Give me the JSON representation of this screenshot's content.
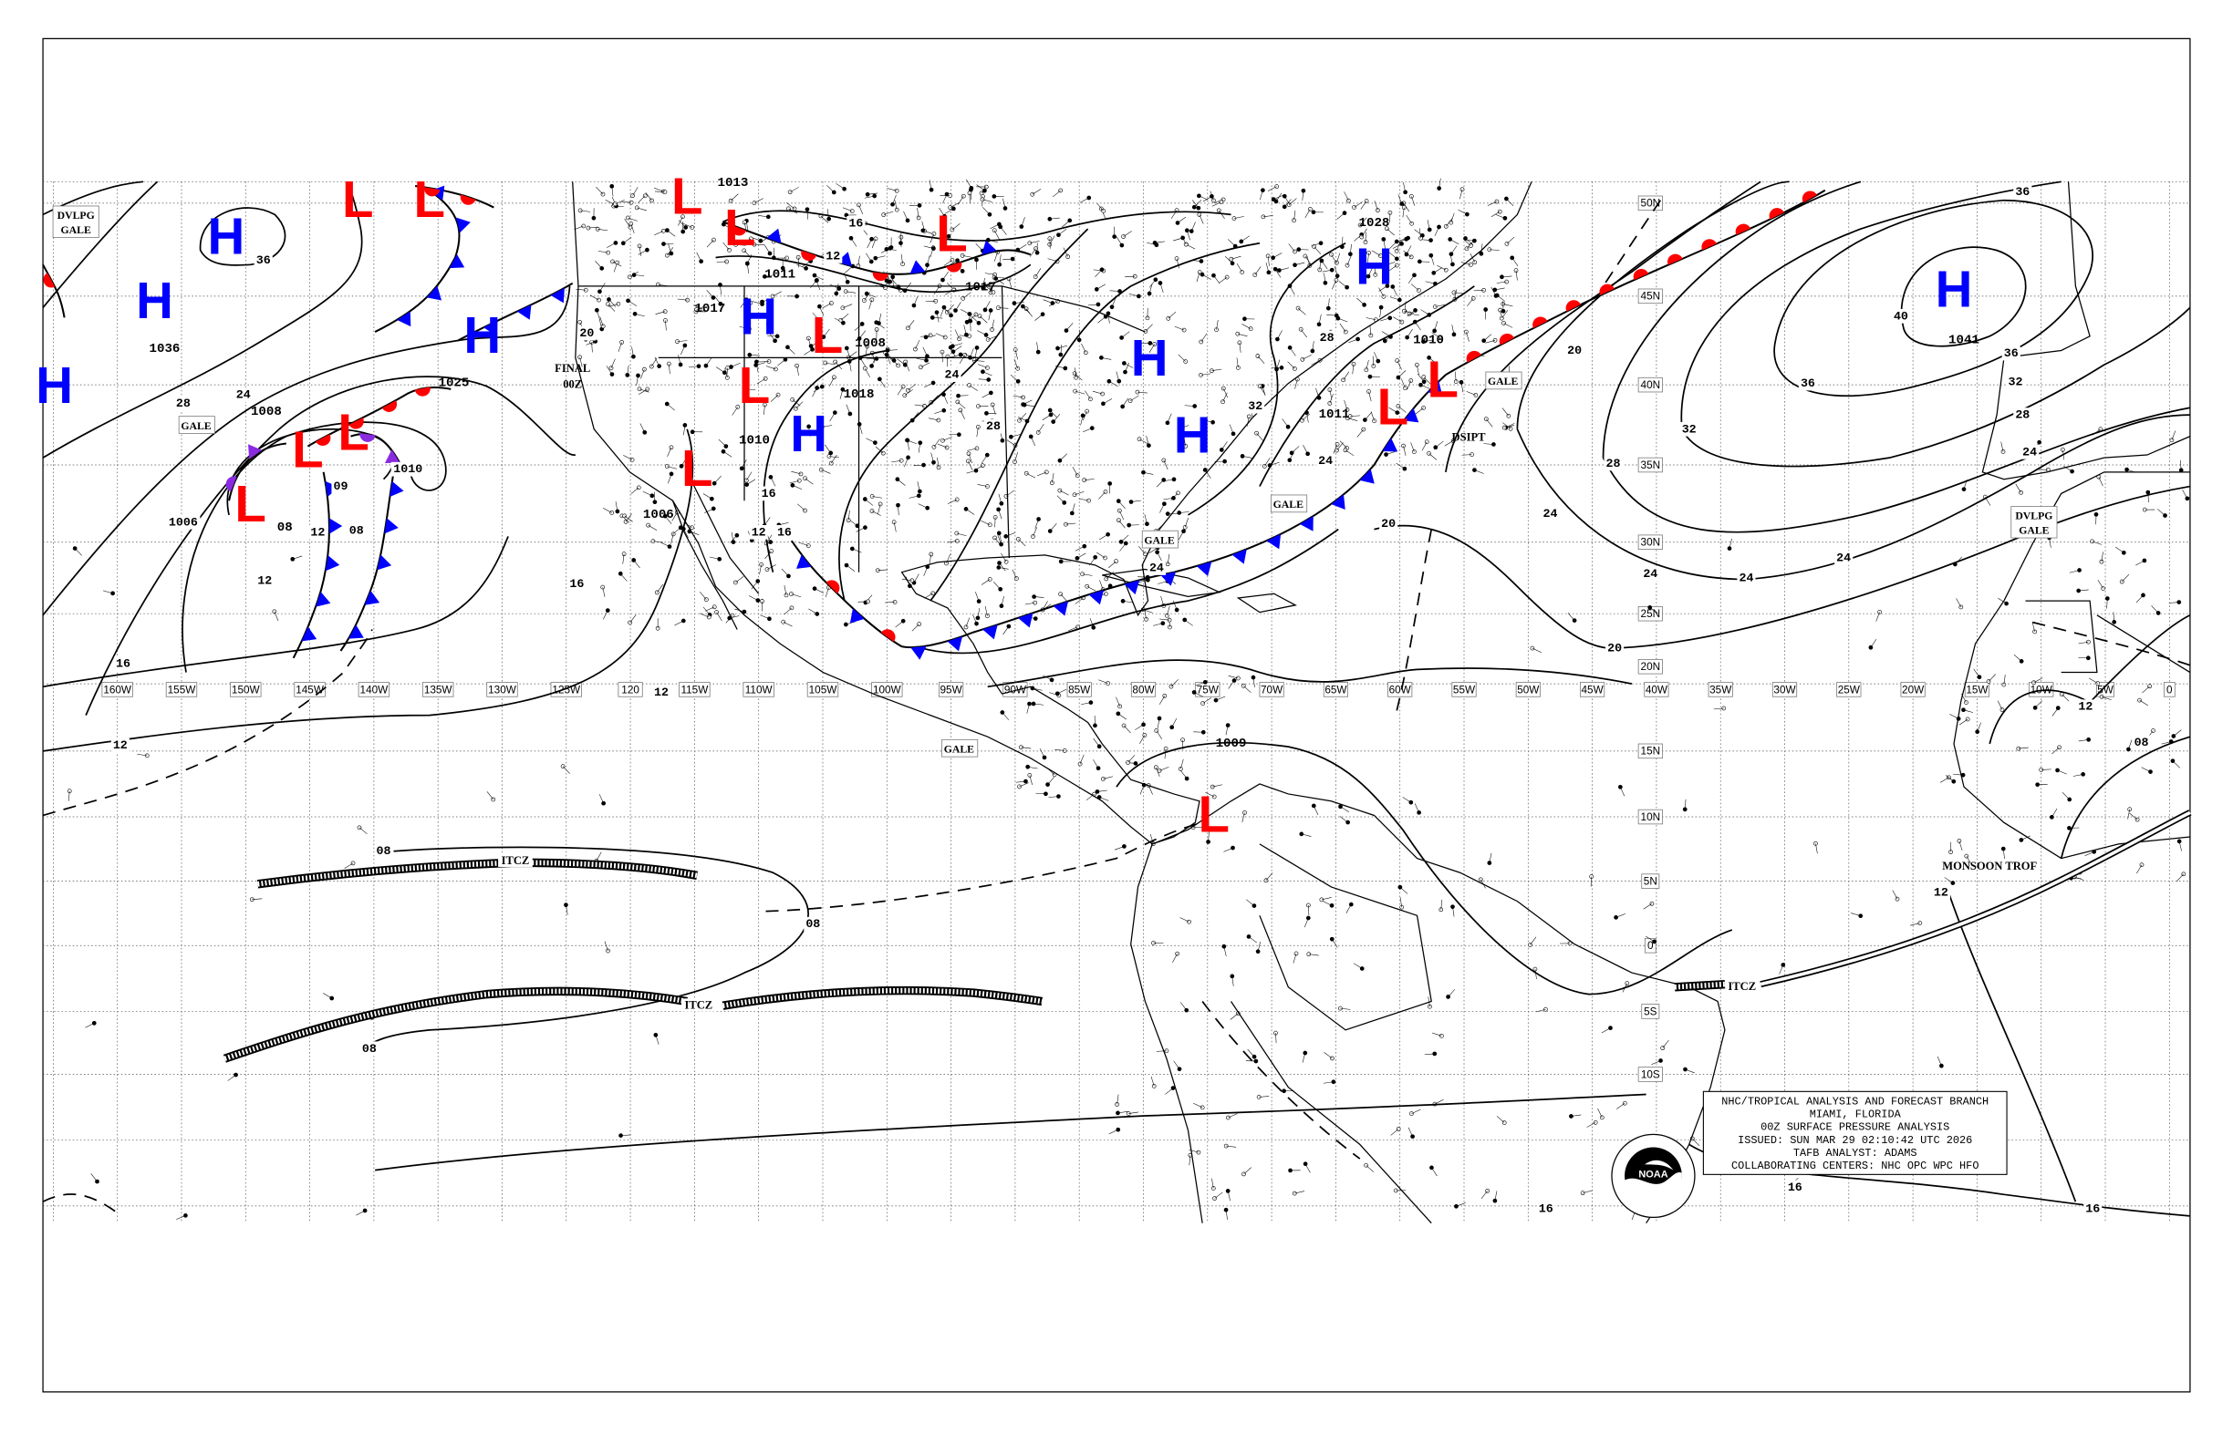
{
  "map": {
    "longitude_labels": [
      "160W",
      "155W",
      "150W",
      "145W",
      "140W",
      "135W",
      "130W",
      "125W",
      "120",
      "115W",
      "110W",
      "105W",
      "100W",
      "95W",
      "90W",
      "85W",
      "80W",
      "75W",
      "70W",
      "65W",
      "60W",
      "55W",
      "50W",
      "45W",
      "40W",
      "35W",
      "30W",
      "25W",
      "20W",
      "15W",
      "10W",
      "5W",
      "0"
    ],
    "latitude_labels": [
      "50N",
      "45N",
      "40N",
      "35N",
      "30N",
      "25N",
      "20N",
      "15N",
      "10N",
      "5N",
      "0",
      "5S",
      "10S"
    ]
  },
  "colors": {
    "cold_front": "#0000ff",
    "warm_front": "#ff0000",
    "occluded_front": "#8a2be2",
    "high": "#0000ff",
    "low": "#ff0000"
  },
  "pressure_centers": [
    {
      "symbol": "H",
      "value": "1036"
    },
    {
      "symbol": "H",
      "value": ""
    },
    {
      "symbol": "H",
      "value": ""
    },
    {
      "symbol": "L",
      "value": ""
    },
    {
      "symbol": "L",
      "value": ""
    },
    {
      "symbol": "L",
      "value": "1008"
    },
    {
      "symbol": "L",
      "value": ""
    },
    {
      "symbol": "L",
      "value": "08"
    },
    {
      "symbol": "H",
      "value": "1025"
    },
    {
      "symbol": "L",
      "value": "1013"
    },
    {
      "symbol": "L",
      "value": "1011"
    },
    {
      "symbol": "H",
      "value": "1017"
    },
    {
      "symbol": "L",
      "value": "1008"
    },
    {
      "symbol": "L",
      "value": "1017"
    },
    {
      "symbol": "L",
      "value": "1010"
    },
    {
      "symbol": "H",
      "value": "1018"
    },
    {
      "symbol": "L",
      "value": "1006"
    },
    {
      "symbol": "H",
      "value": ""
    },
    {
      "symbol": "H",
      "value": ""
    },
    {
      "symbol": "H",
      "value": "1028"
    },
    {
      "symbol": "L",
      "value": "1011"
    },
    {
      "symbol": "L",
      "value": "1010"
    },
    {
      "symbol": "H",
      "value": "1041"
    },
    {
      "symbol": "L",
      "value": "1009"
    }
  ],
  "isobar_labels": [
    "36",
    "28",
    "24",
    "1006",
    "12",
    "16",
    "12",
    "09",
    "12",
    "08",
    "1010",
    "16",
    "12",
    "08",
    "08",
    "08",
    "16",
    "16",
    "16",
    "20",
    "20",
    "24",
    "24",
    "24",
    "24",
    "24",
    "28",
    "28",
    "32",
    "32",
    "36",
    "36",
    "36",
    "40",
    "20",
    "24",
    "28",
    "32",
    "12",
    "08",
    "12",
    "12",
    "16",
    "16",
    "24",
    "24",
    "28",
    "12",
    "16",
    "20"
  ],
  "boxed_labels": [
    "DVLPG",
    "GALE",
    "GALE",
    "GALE",
    "GALE",
    "GALE",
    "GALE",
    "DVLPG",
    "GALE"
  ],
  "annotations": {
    "final": "FINAL",
    "final_time": "00Z",
    "dissipating": "DSIPT",
    "itcz": [
      "ITCZ",
      "ITCZ",
      "ITCZ"
    ],
    "monsoon": "MONSOON TROF"
  },
  "info_box": {
    "lines": [
      "NHC/TROPICAL ANALYSIS AND FORECAST BRANCH",
      "MIAMI, FLORIDA",
      "00Z SURFACE PRESSURE ANALYSIS",
      "ISSUED: SUN MAR 29 02:10:42 UTC 2026",
      "TAFB ANALYST: ADAMS",
      "COLLABORATING CENTERS: NHC OPC WPC HFO"
    ]
  },
  "logo": {
    "text": "NOAA"
  }
}
